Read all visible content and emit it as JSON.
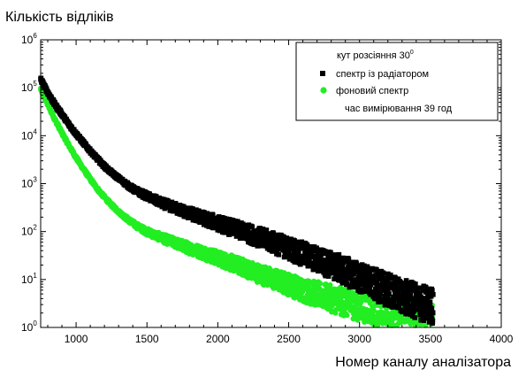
{
  "chart_data": {
    "type": "scatter",
    "title": "",
    "ylabel": "Кількість відліків",
    "xlabel": "Номер каналу аналізатора",
    "xlim": [
      750,
      4000
    ],
    "ylim": [
      1,
      1000000
    ],
    "y_scale": "log",
    "grid": false,
    "legend_position": "top-right",
    "x_ticks": [
      1000,
      1500,
      2000,
      2500,
      3000,
      3500,
      4000
    ],
    "y_ticks": [
      {
        "base": "10",
        "exp": "0",
        "value": 1
      },
      {
        "base": "10",
        "exp": "1",
        "value": 10
      },
      {
        "base": "10",
        "exp": "2",
        "value": 100
      },
      {
        "base": "10",
        "exp": "3",
        "value": 1000
      },
      {
        "base": "10",
        "exp": "4",
        "value": 10000
      },
      {
        "base": "10",
        "exp": "5",
        "value": 100000
      },
      {
        "base": "10",
        "exp": "6",
        "value": 1000000
      }
    ],
    "legend": {
      "header": "кут розсіяння  30",
      "header_sup": "0",
      "footer": "час вимірювання  39 год"
    },
    "series": [
      {
        "name": "спектр із радіатором",
        "color": "#000000",
        "marker": "square",
        "x_range": [
          750,
          3520
        ],
        "points": [
          [
            750,
            150000
          ],
          [
            800,
            80000
          ],
          [
            850,
            45000
          ],
          [
            900,
            28000
          ],
          [
            950,
            17000
          ],
          [
            1000,
            11000
          ],
          [
            1050,
            7200
          ],
          [
            1100,
            4800
          ],
          [
            1150,
            3300
          ],
          [
            1200,
            2300
          ],
          [
            1250,
            1700
          ],
          [
            1300,
            1300
          ],
          [
            1350,
            1000
          ],
          [
            1400,
            780
          ],
          [
            1450,
            650
          ],
          [
            1500,
            550
          ],
          [
            1600,
            400
          ],
          [
            1700,
            310
          ],
          [
            1800,
            240
          ],
          [
            1900,
            190
          ],
          [
            2000,
            150
          ],
          [
            2100,
            120
          ],
          [
            2200,
            95
          ],
          [
            2300,
            75
          ],
          [
            2400,
            58
          ],
          [
            2500,
            45
          ],
          [
            2600,
            34
          ],
          [
            2700,
            26
          ],
          [
            2800,
            20
          ],
          [
            2900,
            15
          ],
          [
            3000,
            11
          ],
          [
            3100,
            8
          ],
          [
            3200,
            6
          ],
          [
            3300,
            4.5
          ],
          [
            3400,
            3.5
          ],
          [
            3500,
            2.8
          ]
        ]
      },
      {
        "name": "фоновий спектр",
        "color": "#22ee22",
        "marker": "circle",
        "x_range": [
          750,
          3520
        ],
        "points": [
          [
            750,
            95000
          ],
          [
            800,
            45000
          ],
          [
            850,
            22000
          ],
          [
            900,
            11500
          ],
          [
            950,
            6200
          ],
          [
            1000,
            3500
          ],
          [
            1050,
            2050
          ],
          [
            1100,
            1250
          ],
          [
            1150,
            780
          ],
          [
            1200,
            520
          ],
          [
            1250,
            360
          ],
          [
            1300,
            260
          ],
          [
            1350,
            195
          ],
          [
            1400,
            150
          ],
          [
            1450,
            120
          ],
          [
            1500,
            100
          ],
          [
            1600,
            75
          ],
          [
            1700,
            58
          ],
          [
            1800,
            45
          ],
          [
            1900,
            36
          ],
          [
            2000,
            28
          ],
          [
            2100,
            22
          ],
          [
            2200,
            17
          ],
          [
            2300,
            13
          ],
          [
            2400,
            10
          ],
          [
            2500,
            8
          ],
          [
            2600,
            6
          ],
          [
            2700,
            5
          ],
          [
            2800,
            4
          ],
          [
            2900,
            3.3
          ],
          [
            3000,
            2.8
          ],
          [
            3100,
            2.4
          ],
          [
            3200,
            2.1
          ],
          [
            3300,
            1.9
          ],
          [
            3400,
            1.7
          ],
          [
            3500,
            1.6
          ]
        ]
      }
    ]
  }
}
